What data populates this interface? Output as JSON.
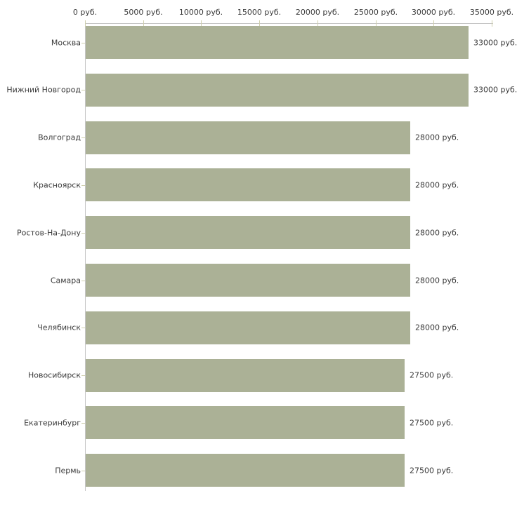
{
  "chart_data": {
    "type": "bar",
    "orientation": "horizontal",
    "title": "",
    "categories": [
      "Москва",
      "Нижний Новгород",
      "Волгоград",
      "Красноярск",
      "Ростов-На-Дону",
      "Самара",
      "Челябинск",
      "Новосибирск",
      "Екатеринбург",
      "Пермь"
    ],
    "values": [
      33000,
      33000,
      28000,
      28000,
      28000,
      28000,
      28000,
      27500,
      27500,
      27500
    ],
    "value_labels": [
      "33000 руб.",
      "33000 руб.",
      "28000 руб.",
      "28000 руб.",
      "28000 руб.",
      "28000 руб.",
      "28000 руб.",
      "27500 руб.",
      "27500 руб.",
      "27500 руб."
    ],
    "x_axis": {
      "position": "top",
      "range": [
        0,
        35000
      ],
      "ticks": [
        0,
        5000,
        10000,
        15000,
        20000,
        25000,
        30000,
        35000
      ],
      "tick_labels": [
        "0 руб.",
        "5000 руб.",
        "10000 руб.",
        "15000 руб.",
        "20000 руб.",
        "25000 руб.",
        "30000 руб.",
        "35000 руб."
      ]
    },
    "ylabel": "",
    "xlabel": "",
    "grid": false,
    "legend": "none",
    "colors": {
      "bar": "#abb196",
      "axis_line": "#c6c6c6",
      "tick_mark": "#cfcfad",
      "text": "#3b3b3b",
      "background": "#ffffff"
    }
  }
}
